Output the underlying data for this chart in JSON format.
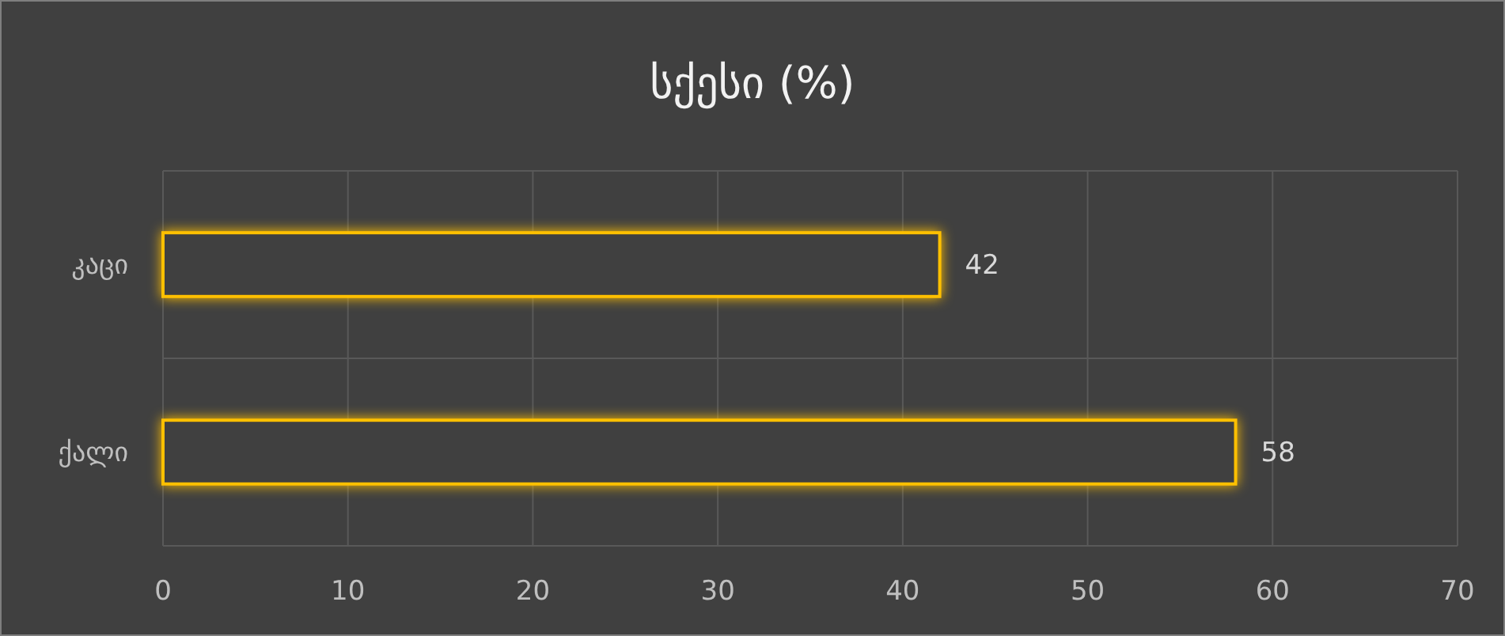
{
  "chart_data": {
    "type": "bar",
    "orientation": "horizontal",
    "title": "სქესი (%)",
    "categories": [
      "კაცი",
      "ქალი"
    ],
    "values": [
      42,
      58
    ],
    "color": "#ffc000",
    "xlim": [
      0,
      70
    ],
    "xticks": [
      0,
      10,
      20,
      30,
      40,
      50,
      60,
      70
    ],
    "grid": true,
    "data_labels": true
  }
}
